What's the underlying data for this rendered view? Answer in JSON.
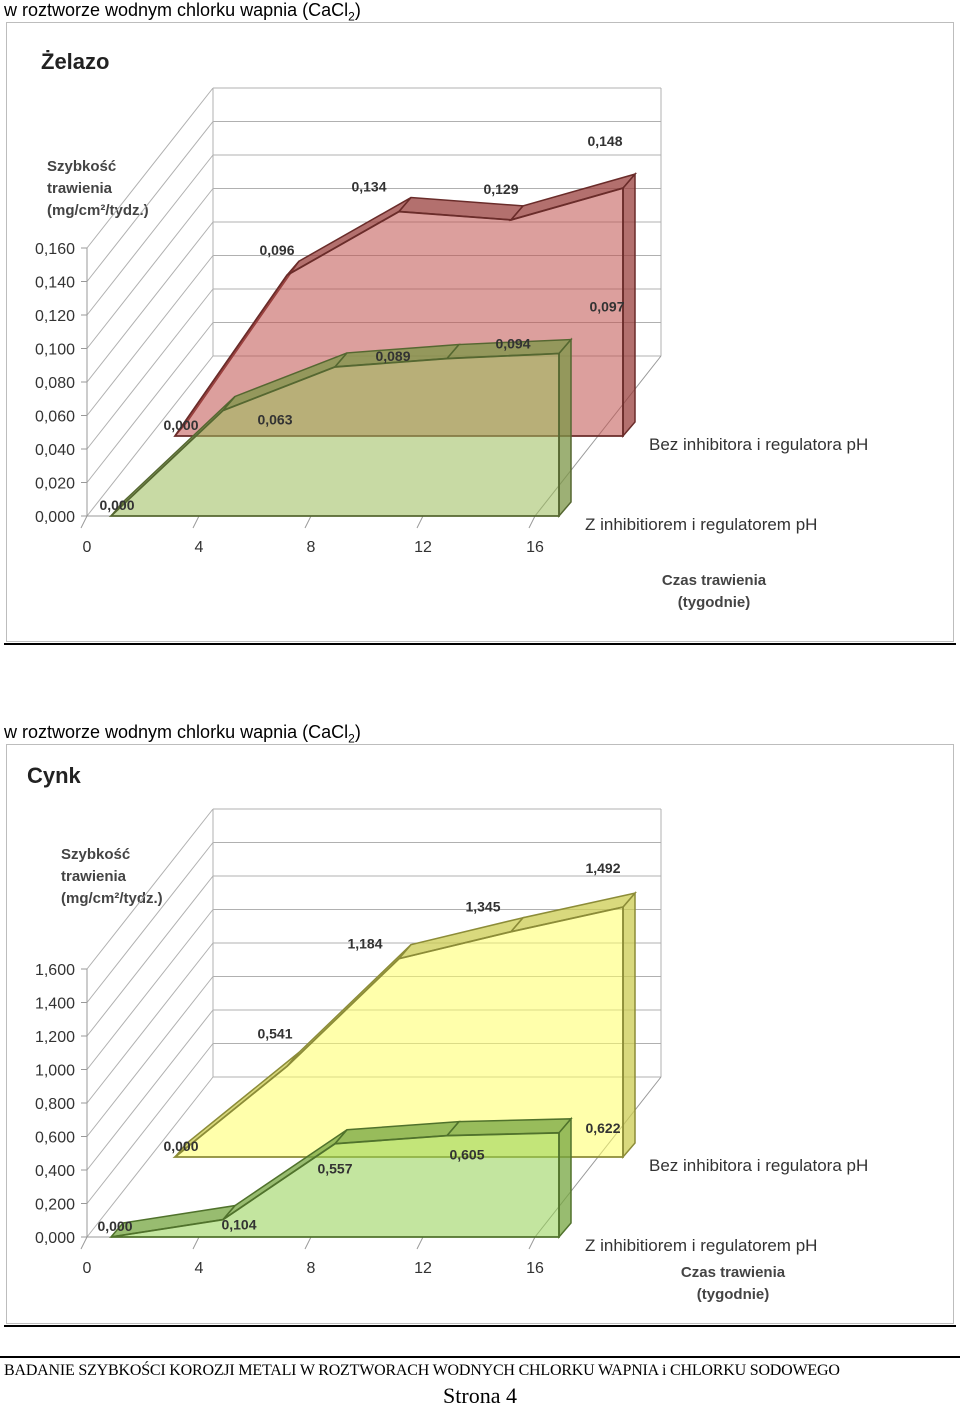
{
  "captions": {
    "top": {
      "prefix": "w roztworze wodnym chlorku wapnia  (CaCl",
      "sub": "2",
      "suffix": ")"
    },
    "bottom": {
      "prefix": "w roztworze wodnym chlorku wapnia  (CaCl",
      "sub": "2",
      "suffix": ")"
    }
  },
  "footer": {
    "text": "BADANIE SZYBKOŚCI KOROZJI METALI W  ROZTWORACH WODNYCH CHLORKU WAPNIA  i CHLORKU SODOWEGO",
    "page": "Strona 4"
  },
  "chart_data": [
    {
      "type": "area",
      "title": "Żelazo",
      "ylabel": [
        "Szybkość",
        "trawienia",
        "(mg/cm²/tydz.)"
      ],
      "xlabel": [
        "Czas trawienia",
        "(tygodnie)"
      ],
      "ylim": [
        0,
        0.16
      ],
      "yticks": [
        "0,000",
        "0,020",
        "0,040",
        "0,060",
        "0,080",
        "0,100",
        "0,120",
        "0,140",
        "0,160"
      ],
      "ytick_values": [
        0,
        0.02,
        0.04,
        0.06,
        0.08,
        0.1,
        0.12,
        0.14,
        0.16
      ],
      "xticks": [
        "0",
        "4",
        "8",
        "12",
        "16"
      ],
      "x": [
        0,
        4,
        8,
        12,
        16
      ],
      "grid": true,
      "series": [
        {
          "name": "Z inhibitiorem i regulatorem pH",
          "color": "#9bbb59",
          "values": [
            0.0,
            0.063,
            0.089,
            0.094,
            0.097
          ],
          "labels": [
            "0,000",
            "0,063",
            "0,089",
            "0,094",
            "0,097"
          ]
        },
        {
          "name": "Bez inhibitora i regulatora pH",
          "color": "#c0504d",
          "values": [
            0.0,
            0.096,
            0.134,
            0.129,
            0.148
          ],
          "labels": [
            "0,000",
            "0,096",
            "0,134",
            "0,129",
            "0,148"
          ]
        }
      ]
    },
    {
      "type": "area",
      "title": "Cynk",
      "ylabel": [
        "Szybkość",
        "trawienia",
        "(mg/cm²/tydz.)"
      ],
      "xlabel": [
        "Czas trawienia",
        "(tygodnie)"
      ],
      "ylim": [
        0,
        1.6
      ],
      "yticks": [
        "0,000",
        "0,200",
        "0,400",
        "0,600",
        "0,800",
        "1,000",
        "1,200",
        "1,400",
        "1,600"
      ],
      "ytick_values": [
        0,
        0.2,
        0.4,
        0.6,
        0.8,
        1.0,
        1.2,
        1.4,
        1.6
      ],
      "xticks": [
        "0",
        "4",
        "8",
        "12",
        "16"
      ],
      "x": [
        0,
        4,
        8,
        12,
        16
      ],
      "grid": true,
      "series": [
        {
          "name": "Z inhibitiorem i regulatorem pH",
          "color": "#92d050",
          "values": [
            0.0,
            0.104,
            0.557,
            0.605,
            0.622
          ],
          "labels": [
            "0,000",
            "0,104",
            "0,557",
            "0,605",
            "0,622"
          ]
        },
        {
          "name": "Bez inhibitora i regulatora pH",
          "color": "#ffff66",
          "values": [
            0.0,
            0.541,
            1.184,
            1.345,
            1.492
          ],
          "labels": [
            "0,000",
            "0,541",
            "1,184",
            "1,345",
            "1,492"
          ]
        }
      ]
    }
  ]
}
